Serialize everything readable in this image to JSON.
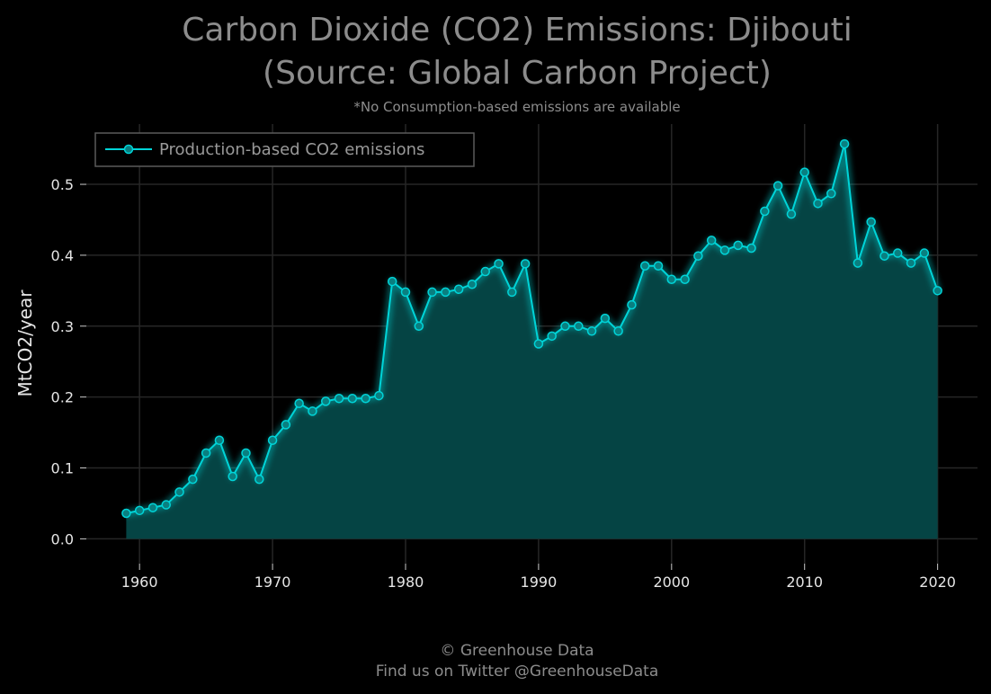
{
  "chart_data": {
    "type": "area",
    "title_line1": "Carbon Dioxide (CO2) Emissions: Djibouti",
    "title_line2": "(Source: Global Carbon Project)",
    "subtitle": "*No Consumption-based emissions are available",
    "xlabel": "",
    "ylabel": "MtCO2/year",
    "xlim": [
      1956,
      2023
    ],
    "ylim": [
      -0.035,
      0.585
    ],
    "x_ticks": [
      1960,
      1970,
      1980,
      1990,
      2000,
      2010,
      2020
    ],
    "y_ticks": [
      0.0,
      0.1,
      0.2,
      0.3,
      0.4,
      0.5
    ],
    "y_tick_labels": [
      "0.0",
      "0.1",
      "0.2",
      "0.3",
      "0.4",
      "0.5"
    ],
    "grid": true,
    "legend_position": "top-left",
    "line_color": "#00d4d8",
    "fill_color": "#054444",
    "series": [
      {
        "name": "Production-based CO2 emissions",
        "x": [
          1959,
          1960,
          1961,
          1962,
          1963,
          1964,
          1965,
          1966,
          1967,
          1968,
          1969,
          1970,
          1971,
          1972,
          1973,
          1974,
          1975,
          1976,
          1977,
          1978,
          1979,
          1980,
          1981,
          1982,
          1983,
          1984,
          1985,
          1986,
          1987,
          1988,
          1989,
          1990,
          1991,
          1992,
          1993,
          1994,
          1995,
          1996,
          1997,
          1998,
          1999,
          2000,
          2001,
          2002,
          2003,
          2004,
          2005,
          2006,
          2007,
          2008,
          2009,
          2010,
          2011,
          2012,
          2013,
          2014,
          2015,
          2016,
          2017,
          2018,
          2019,
          2020
        ],
        "values": [
          0.036,
          0.04,
          0.044,
          0.048,
          0.066,
          0.084,
          0.121,
          0.139,
          0.088,
          0.121,
          0.084,
          0.139,
          0.161,
          0.191,
          0.18,
          0.194,
          0.198,
          0.198,
          0.198,
          0.202,
          0.363,
          0.348,
          0.3,
          0.348,
          0.348,
          0.352,
          0.359,
          0.377,
          0.388,
          0.348,
          0.388,
          0.275,
          0.286,
          0.3,
          0.3,
          0.293,
          0.311,
          0.293,
          0.33,
          0.385,
          0.385,
          0.366,
          0.366,
          0.399,
          0.421,
          0.407,
          0.414,
          0.41,
          0.462,
          0.498,
          0.458,
          0.517,
          0.473,
          0.487,
          0.557,
          0.389,
          0.447,
          0.399,
          0.403,
          0.389,
          0.403,
          0.35
        ]
      }
    ]
  },
  "footer": {
    "line1": "© Greenhouse Data",
    "line2": "Find us on Twitter @GreenhouseData"
  }
}
